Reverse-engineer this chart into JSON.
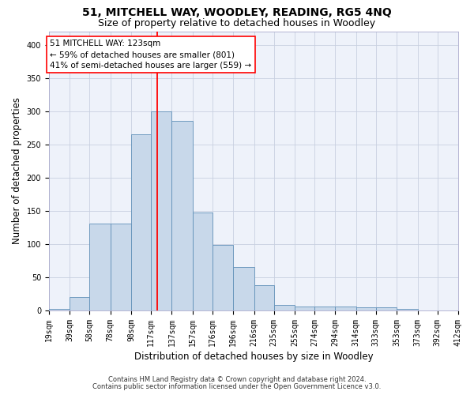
{
  "title": "51, MITCHELL WAY, WOODLEY, READING, RG5 4NQ",
  "subtitle": "Size of property relative to detached houses in Woodley",
  "xlabel": "Distribution of detached houses by size in Woodley",
  "ylabel": "Number of detached properties",
  "footnote1": "Contains HM Land Registry data © Crown copyright and database right 2024.",
  "footnote2": "Contains public sector information licensed under the Open Government Licence v3.0.",
  "annotation_line1": "51 MITCHELL WAY: 123sqm",
  "annotation_line2": "← 59% of detached houses are smaller (801)",
  "annotation_line3": "41% of semi-detached houses are larger (559) →",
  "bin_edges": [
    19,
    39,
    58,
    78,
    98,
    117,
    137,
    157,
    176,
    196,
    216,
    235,
    255,
    274,
    294,
    314,
    333,
    353,
    373,
    392,
    412
  ],
  "bin_labels": [
    "19sqm",
    "39sqm",
    "58sqm",
    "78sqm",
    "98sqm",
    "117sqm",
    "137sqm",
    "157sqm",
    "176sqm",
    "196sqm",
    "216sqm",
    "235sqm",
    "255sqm",
    "274sqm",
    "294sqm",
    "314sqm",
    "333sqm",
    "353sqm",
    "373sqm",
    "392sqm",
    "412sqm"
  ],
  "bar_counts": [
    2,
    20,
    130,
    130,
    265,
    300,
    285,
    147,
    98,
    65,
    38,
    8,
    6,
    5,
    5,
    4,
    4,
    2,
    0,
    0
  ],
  "bar_color": "#c8d8ea",
  "bar_edge_color": "#6090b8",
  "vline_color": "red",
  "vline_x": 123,
  "ylim": [
    0,
    420
  ],
  "yticks": [
    0,
    50,
    100,
    150,
    200,
    250,
    300,
    350,
    400
  ],
  "background_color": "#eef2fa",
  "grid_color": "#c8d0e0",
  "title_fontsize": 10,
  "subtitle_fontsize": 9,
  "ylabel_fontsize": 8.5,
  "xlabel_fontsize": 8.5,
  "tick_fontsize": 7,
  "annotation_fontsize": 7.5,
  "footnote_fontsize": 6
}
